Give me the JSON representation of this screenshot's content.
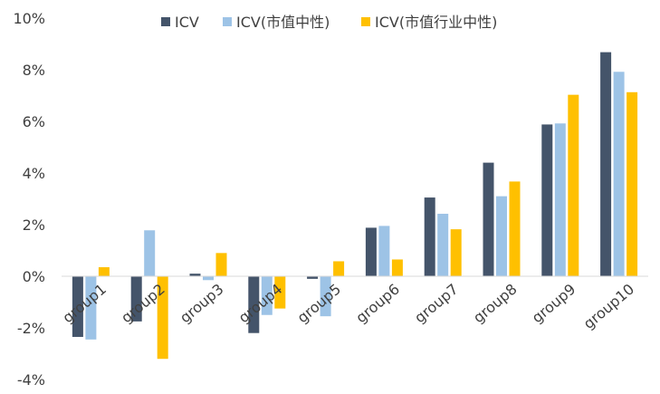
{
  "chart_data": {
    "type": "bar",
    "title": "",
    "xlabel": "",
    "ylabel": "",
    "ylim": [
      -4,
      10
    ],
    "yticks": [
      -4,
      -2,
      0,
      2,
      4,
      6,
      8,
      10
    ],
    "ytick_labels": [
      "-4%",
      "-2%",
      "0%",
      "2%",
      "4%",
      "6%",
      "8%",
      "10%"
    ],
    "grid": false,
    "legend_position": "top-center",
    "categories": [
      "group1",
      "group2",
      "group3",
      "group4",
      "group5",
      "group6",
      "group7",
      "group8",
      "group9",
      "group10"
    ],
    "series": [
      {
        "name": "ICV",
        "color": "#44546A",
        "values": [
          -2.35,
          -1.75,
          0.1,
          -2.2,
          -0.1,
          1.88,
          3.05,
          4.4,
          5.88,
          8.68
        ]
      },
      {
        "name": "ICV(市值中性)",
        "color": "#9DC3E6",
        "values": [
          -2.45,
          1.78,
          -0.15,
          -1.5,
          -1.55,
          1.95,
          2.42,
          3.1,
          5.92,
          7.92
        ]
      },
      {
        "name": "ICV(市值行业中性)",
        "color": "#FFC000",
        "values": [
          0.35,
          -3.2,
          0.9,
          -1.25,
          0.58,
          0.65,
          1.82,
          3.67,
          7.03,
          7.13
        ]
      }
    ]
  }
}
